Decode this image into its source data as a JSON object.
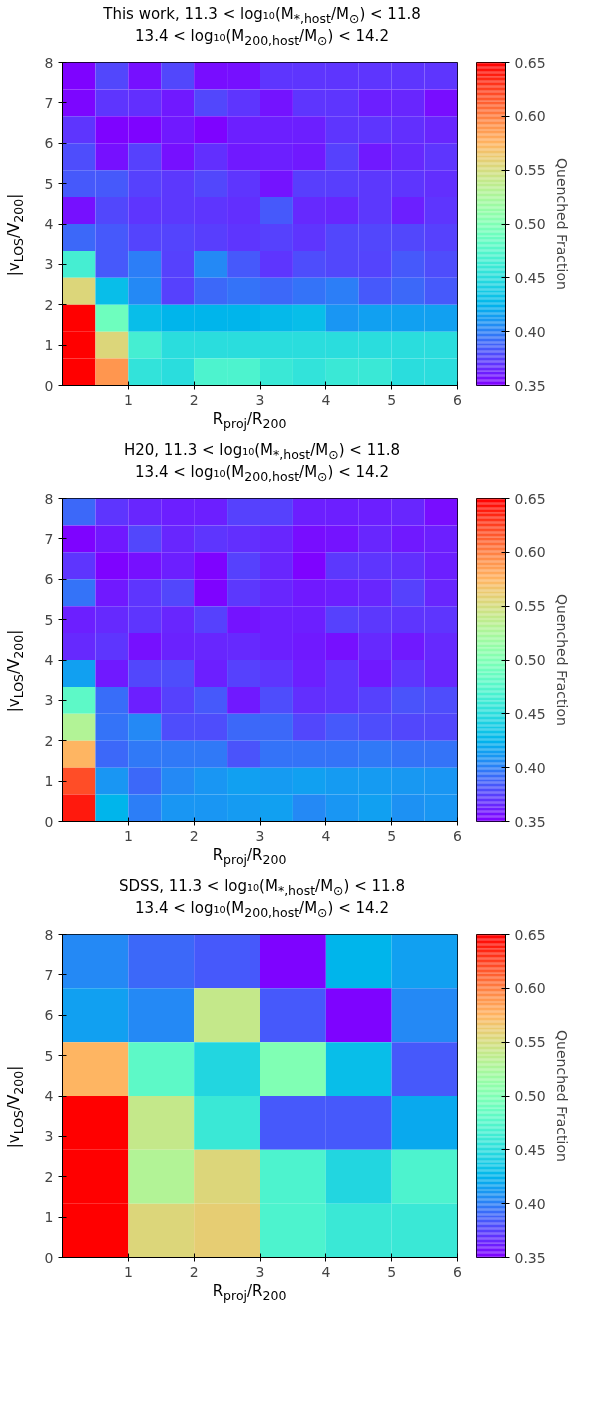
{
  "chart_data": [
    {
      "type": "heatmap",
      "title": "This work, 11.3 < log₁₀(M$_{*,host}$/M$_{⊙}$) < 11.8",
      "subtitle": "13.4 < log₁₀(M$_{200,host}$/M$_{⊙}$) < 14.2",
      "xlabel": "R$_{proj}$/R$_{200}$",
      "ylabel": "|v$_{LOS}$/V$_{200}$|",
      "clabel": "Quenched Fraction",
      "xlim": [
        0,
        6
      ],
      "xticks": [
        1,
        2,
        3,
        4,
        5,
        6
      ],
      "ylim": [
        0,
        8
      ],
      "yticks": [
        0,
        1,
        2,
        3,
        4,
        5,
        6,
        7,
        8
      ],
      "clim": [
        0.35,
        0.65
      ],
      "cticks": [
        0.35,
        {
          "value": 0.4,
          "label": "0.40"
        },
        0.45,
        {
          "value": 0.5,
          "label": "0.50"
        },
        0.55,
        {
          "value": 0.6,
          "label": "0.60"
        },
        0.65
      ],
      "cells": [
        [
          0.352,
          0.378,
          0.356,
          0.378,
          0.355,
          0.356,
          0.37,
          0.37,
          0.37,
          0.37,
          0.37,
          0.37
        ],
        [
          0.353,
          0.37,
          0.368,
          0.36,
          0.378,
          0.37,
          0.358,
          0.37,
          0.37,
          0.362,
          0.365,
          0.355
        ],
        [
          0.37,
          0.352,
          0.352,
          0.36,
          0.352,
          0.362,
          0.362,
          0.362,
          0.37,
          0.37,
          0.368,
          0.365
        ],
        [
          0.38,
          0.357,
          0.375,
          0.356,
          0.368,
          0.36,
          0.362,
          0.36,
          0.375,
          0.36,
          0.366,
          0.37
        ],
        [
          0.385,
          0.385,
          0.375,
          0.372,
          0.378,
          0.37,
          0.358,
          0.374,
          0.374,
          0.372,
          0.37,
          0.368
        ],
        [
          0.356,
          0.378,
          0.37,
          0.372,
          0.37,
          0.368,
          0.385,
          0.366,
          0.365,
          0.372,
          0.362,
          0.37
        ],
        [
          0.39,
          0.385,
          0.376,
          0.376,
          0.374,
          0.37,
          0.375,
          0.37,
          0.378,
          0.378,
          0.378,
          0.375
        ],
        [
          0.465,
          0.385,
          0.4,
          0.375,
          0.405,
          0.385,
          0.37,
          0.38,
          0.378,
          0.376,
          0.385,
          0.38
        ],
        [
          0.555,
          0.43,
          0.405,
          0.375,
          0.39,
          0.395,
          0.39,
          0.395,
          0.4,
          0.385,
          0.39,
          0.385
        ],
        [
          0.65,
          0.49,
          0.43,
          0.425,
          0.425,
          0.425,
          0.428,
          0.43,
          0.41,
          0.415,
          0.415,
          0.415
        ],
        [
          0.65,
          0.555,
          0.465,
          0.45,
          0.45,
          0.45,
          0.45,
          0.45,
          0.45,
          0.45,
          0.45,
          0.45
        ],
        [
          0.65,
          0.59,
          0.455,
          0.45,
          0.47,
          0.47,
          0.46,
          0.455,
          0.46,
          0.46,
          0.45,
          0.45
        ]
      ]
    },
    {
      "type": "heatmap",
      "title": "H20, 11.3 < log₁₀(M$_{*,host}$/M$_{⊙}$) < 11.8",
      "subtitle": "13.4 < log₁₀(M$_{200,host}$/M$_{⊙}$) < 14.2",
      "xlabel": "R$_{proj}$/R$_{200}$",
      "ylabel": "|v$_{LOS}$/V$_{200}$|",
      "clabel": "Quenched Fraction",
      "xlim": [
        0,
        6
      ],
      "xticks": [
        1,
        2,
        3,
        4,
        5,
        6
      ],
      "ylim": [
        0,
        8
      ],
      "yticks": [
        0,
        1,
        2,
        3,
        4,
        5,
        6,
        7,
        8
      ],
      "clim": [
        0.35,
        0.65
      ],
      "cticks": [
        0.35,
        {
          "value": 0.4,
          "label": "0.40"
        },
        0.45,
        {
          "value": 0.5,
          "label": "0.50"
        },
        0.55,
        {
          "value": 0.6,
          "label": "0.60"
        },
        0.65
      ],
      "cells": [
        [
          0.39,
          0.37,
          0.365,
          0.362,
          0.362,
          0.375,
          0.375,
          0.362,
          0.362,
          0.362,
          0.365,
          0.355
        ],
        [
          0.352,
          0.36,
          0.378,
          0.365,
          0.37,
          0.368,
          0.365,
          0.355,
          0.358,
          0.365,
          0.36,
          0.362
        ],
        [
          0.37,
          0.352,
          0.356,
          0.362,
          0.352,
          0.375,
          0.365,
          0.352,
          0.372,
          0.37,
          0.368,
          0.362
        ],
        [
          0.395,
          0.36,
          0.37,
          0.378,
          0.352,
          0.372,
          0.365,
          0.36,
          0.362,
          0.365,
          0.375,
          0.365
        ],
        [
          0.362,
          0.366,
          0.37,
          0.365,
          0.375,
          0.358,
          0.362,
          0.362,
          0.375,
          0.372,
          0.37,
          0.37
        ],
        [
          0.366,
          0.37,
          0.356,
          0.363,
          0.365,
          0.366,
          0.362,
          0.36,
          0.356,
          0.366,
          0.36,
          0.366
        ],
        [
          0.415,
          0.36,
          0.378,
          0.38,
          0.362,
          0.375,
          0.37,
          0.362,
          0.37,
          0.36,
          0.37,
          0.365
        ],
        [
          0.48,
          0.393,
          0.362,
          0.375,
          0.385,
          0.36,
          0.38,
          0.368,
          0.37,
          0.375,
          0.382,
          0.38
        ],
        [
          0.53,
          0.395,
          0.405,
          0.38,
          0.38,
          0.39,
          0.39,
          0.378,
          0.385,
          0.38,
          0.378,
          0.378
        ],
        [
          0.575,
          0.39,
          0.398,
          0.398,
          0.398,
          0.382,
          0.395,
          0.395,
          0.395,
          0.398,
          0.395,
          0.395
        ],
        [
          0.62,
          0.41,
          0.39,
          0.405,
          0.41,
          0.415,
          0.413,
          0.415,
          0.413,
          0.413,
          0.412,
          0.41
        ],
        [
          0.64,
          0.425,
          0.4,
          0.41,
          0.41,
          0.413,
          0.415,
          0.405,
          0.41,
          0.415,
          0.408,
          0.41
        ]
      ]
    },
    {
      "type": "heatmap",
      "title": "SDSS, 11.3 < log₁₀(M$_{*,host}$/M$_{⊙}$) < 11.8",
      "subtitle": "13.4 < log₁₀(M$_{200,host}$/M$_{⊙}$) < 14.2",
      "xlabel": "R$_{proj}$/R$_{200}$",
      "ylabel": "|v$_{LOS}$/V$_{200}$|",
      "clabel": "Quenched Fraction",
      "xlim": [
        0,
        6
      ],
      "xticks": [
        1,
        2,
        3,
        4,
        5,
        6
      ],
      "ylim": [
        0,
        8
      ],
      "yticks": [
        0,
        1,
        2,
        3,
        4,
        5,
        6,
        7,
        8
      ],
      "clim": [
        0.35,
        0.65
      ],
      "cticks": [
        0.35,
        {
          "value": 0.4,
          "label": "0.40"
        },
        0.45,
        {
          "value": 0.5,
          "label": "0.50"
        },
        0.55,
        {
          "value": 0.6,
          "label": "0.60"
        },
        0.65
      ],
      "cells": [
        [
          0.405,
          0.39,
          0.385,
          0.352,
          0.425,
          0.415
        ],
        [
          0.415,
          0.405,
          0.54,
          0.385,
          0.352,
          0.405
        ],
        [
          0.575,
          0.48,
          0.445,
          0.5,
          0.43,
          0.385
        ],
        [
          0.65,
          0.54,
          0.46,
          0.385,
          0.385,
          0.42
        ],
        [
          0.65,
          0.53,
          0.555,
          0.47,
          0.445,
          0.47
        ],
        [
          0.65,
          0.555,
          0.56,
          0.47,
          0.46,
          0.46
        ]
      ]
    }
  ]
}
